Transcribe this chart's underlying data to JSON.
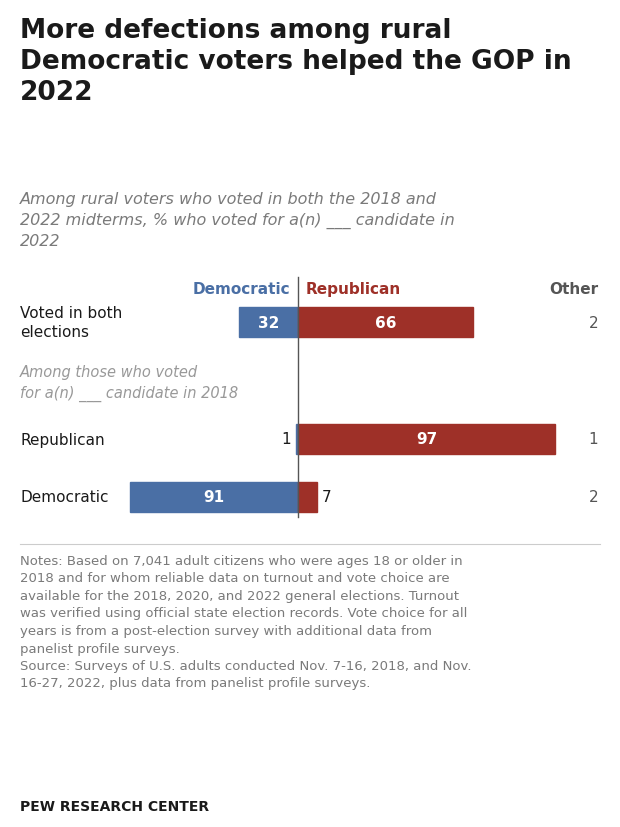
{
  "title": "More defections among rural\nDemocratic voters helped the GOP in\n2022",
  "subtitle_actual": "Among rural voters who voted in both the 2018 and\n2022 midterms, % who voted for a(n) ___ candidate in\n2022",
  "col_header_dem": "Democratic",
  "col_header_rep": "Republican",
  "col_header_other": "Other",
  "rows": [
    {
      "label": "Voted in both\nelections",
      "dem": 32,
      "rep": 66,
      "other": 2
    },
    {
      "label": "Republican",
      "dem": 1,
      "rep": 97,
      "other": 1
    },
    {
      "label": "Democratic",
      "dem": 91,
      "rep": 7,
      "other": 2
    }
  ],
  "italic_label": "Among those who voted\nfor a(n) ___ candidate in 2018",
  "color_dem": "#4a6fa5",
  "color_rep": "#9e3028",
  "notes_text": "Notes: Based on 7,041 adult citizens who were ages 18 or older in\n2018 and for whom reliable data on turnout and vote choice are\navailable for the 2018, 2020, and 2022 general elections. Turnout\nwas verified using official state election records. Vote choice for all\nyears is from a post-election survey with additional data from\npanelist profile surveys.\nSource: Surveys of U.S. adults conducted Nov. 7-16, 2018, and Nov.\n16-27, 2022, plus data from panelist profile surveys.",
  "source_label": "PEW RESEARCH CENTER",
  "background_color": "#ffffff",
  "title_color": "#1a1a1a",
  "subtitle_color": "#7a7a7a",
  "notes_color": "#7a7a7a",
  "italic_color": "#999999",
  "label_color": "#1a1a1a",
  "other_color": "#555555",
  "divider_color": "#555555",
  "sep_line_color": "#cccccc"
}
